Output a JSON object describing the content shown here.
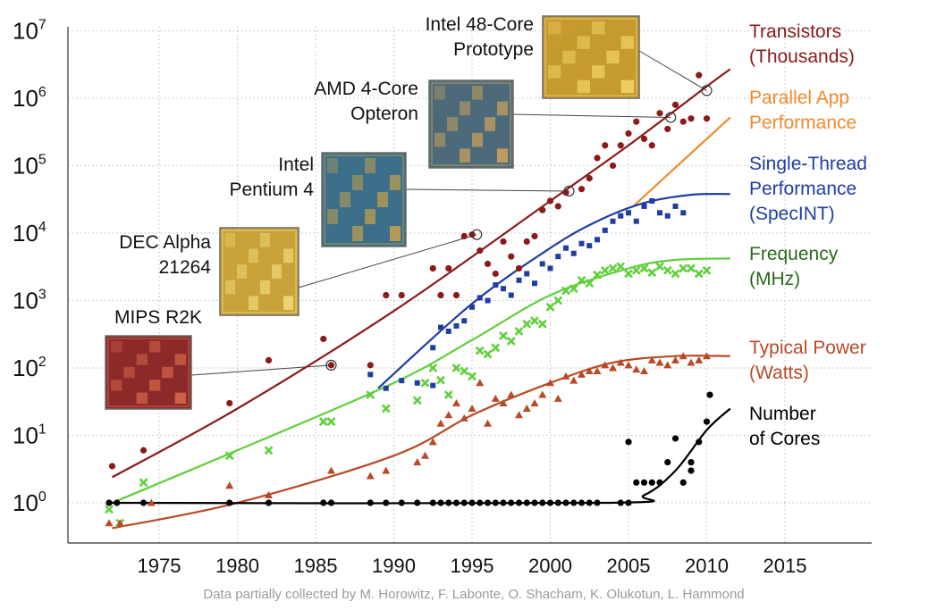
{
  "chart_data": {
    "type": "scatter",
    "title": "",
    "xlabel": "",
    "ylabel": "",
    "xlim": [
      1970,
      2020
    ],
    "ylim_log10": [
      -0.5,
      7
    ],
    "y_scale": "log",
    "grid": "dotted",
    "x_ticks": [
      "1975",
      "1980",
      "1985",
      "1990",
      "1995",
      "2000",
      "2005",
      "2010",
      "2015"
    ],
    "y_ticks": [
      {
        "base": "10",
        "exp": "0"
      },
      {
        "base": "10",
        "exp": "1"
      },
      {
        "base": "10",
        "exp": "2"
      },
      {
        "base": "10",
        "exp": "3"
      },
      {
        "base": "10",
        "exp": "4"
      },
      {
        "base": "10",
        "exp": "5"
      },
      {
        "base": "10",
        "exp": "6"
      },
      {
        "base": "10",
        "exp": "7"
      }
    ],
    "credit": "Data partially collected by M. Horowitz, F. Labonte, O. Shacham, K. Olukotun, L. Hammond",
    "series": [
      {
        "name": "Transistors (Thousands)",
        "label_lines": [
          "Transistors",
          "(Thousands)"
        ],
        "color": "#8b1a1a",
        "marker": "circle",
        "points": [
          [
            1972,
            3.5
          ],
          [
            1974,
            6
          ],
          [
            1979.5,
            30
          ],
          [
            1982,
            130
          ],
          [
            1985.5,
            270
          ],
          [
            1986,
            110
          ],
          [
            1988.5,
            110
          ],
          [
            1989.5,
            1200
          ],
          [
            1990.5,
            1200
          ],
          [
            1992.5,
            3000
          ],
          [
            1993,
            1200
          ],
          [
            1993.5,
            3000
          ],
          [
            1994,
            1200
          ],
          [
            1994.5,
            9000
          ],
          [
            1995,
            9500
          ],
          [
            1995.5,
            5500
          ],
          [
            1996,
            3500
          ],
          [
            1996.5,
            2500
          ],
          [
            1997,
            7500
          ],
          [
            1997.5,
            4500
          ],
          [
            1998,
            3000
          ],
          [
            1998.5,
            7500
          ],
          [
            1999,
            9000
          ],
          [
            1999.5,
            22000
          ],
          [
            2000,
            30000
          ],
          [
            2000.5,
            25000
          ],
          [
            2001,
            40000
          ],
          [
            2002,
            45000
          ],
          [
            2002.5,
            65000
          ],
          [
            2003,
            130000
          ],
          [
            2003.5,
            200000
          ],
          [
            2004,
            100000
          ],
          [
            2004.5,
            200000
          ],
          [
            2005,
            300000
          ],
          [
            2005.5,
            450000
          ],
          [
            2006,
            250000
          ],
          [
            2006.5,
            200000
          ],
          [
            2007,
            600000
          ],
          [
            2007.5,
            350000
          ],
          [
            2008,
            800000
          ],
          [
            2008.5,
            450000
          ],
          [
            2009,
            500000
          ],
          [
            2009.5,
            2200000
          ],
          [
            2010,
            500000
          ]
        ],
        "trend": [
          [
            1972,
            2.4
          ],
          [
            1980,
            25
          ],
          [
            1990,
            700
          ],
          [
            2000,
            30000
          ],
          [
            2005,
            200000
          ],
          [
            2010,
            1500000
          ],
          [
            2011.5,
            2700000
          ]
        ]
      },
      {
        "name": "Parallel App Performance",
        "label_lines": [
          "Parallel App",
          "Performance"
        ],
        "color": "#f08a2c",
        "marker": "none",
        "points": [],
        "trend": [
          [
            2005.3,
            25000
          ],
          [
            2011.5,
            520000
          ]
        ]
      },
      {
        "name": "Single-Thread Performance (SpecINT)",
        "label_lines": [
          "Single-Thread",
          "Performance",
          "(SpecINT)"
        ],
        "color": "#1f3ea0",
        "marker": "square",
        "points": [
          [
            1988.5,
            80
          ],
          [
            1989.5,
            50
          ],
          [
            1990.5,
            65
          ],
          [
            1991.5,
            60
          ],
          [
            1992.5,
            55
          ],
          [
            1992.5,
            200
          ],
          [
            1993,
            400
          ],
          [
            1993.5,
            350
          ],
          [
            1994,
            420
          ],
          [
            1994.5,
            500
          ],
          [
            1995,
            800
          ],
          [
            1995.5,
            1100
          ],
          [
            1996,
            1000
          ],
          [
            1996.5,
            1700
          ],
          [
            1997,
            1500
          ],
          [
            1997.5,
            1200
          ],
          [
            1998,
            2000
          ],
          [
            1998.5,
            2500
          ],
          [
            1999,
            1800
          ],
          [
            1999.5,
            3500
          ],
          [
            2000,
            3000
          ],
          [
            2000.5,
            4500
          ],
          [
            2001,
            6000
          ],
          [
            2001.5,
            5000
          ],
          [
            2002,
            7000
          ],
          [
            2002.5,
            6500
          ],
          [
            2003,
            8000
          ],
          [
            2003.5,
            11000
          ],
          [
            2004,
            15000
          ],
          [
            2004.5,
            18000
          ],
          [
            2005,
            20000
          ],
          [
            2005.5,
            15000
          ],
          [
            2006,
            25000
          ],
          [
            2006.5,
            30000
          ],
          [
            2007,
            20000
          ],
          [
            2007.5,
            18000
          ],
          [
            2008,
            25000
          ],
          [
            2008.5,
            20000
          ]
        ],
        "trend": [
          [
            1989,
            50
          ],
          [
            1995,
            900
          ],
          [
            2000,
            6000
          ],
          [
            2003,
            15000
          ],
          [
            2006,
            28000
          ],
          [
            2009,
            37000
          ],
          [
            2011.5,
            38000
          ]
        ]
      },
      {
        "name": "Frequency (MHz)",
        "label_lines": [
          "Frequency",
          "(MHz)"
        ],
        "color": "#5fd03a",
        "marker": "x",
        "points": [
          [
            1971.8,
            0.8
          ],
          [
            1972.5,
            0.5
          ],
          [
            1974,
            2
          ],
          [
            1979.5,
            5
          ],
          [
            1982,
            6
          ],
          [
            1985.5,
            16
          ],
          [
            1986,
            16
          ],
          [
            1988.5,
            40
          ],
          [
            1989.5,
            25
          ],
          [
            1991.5,
            33
          ],
          [
            1992,
            60
          ],
          [
            1992.5,
            100
          ],
          [
            1993,
            66
          ],
          [
            1993.5,
            40
          ],
          [
            1994,
            100
          ],
          [
            1994.5,
            90
          ],
          [
            1995,
            75
          ],
          [
            1995.5,
            180
          ],
          [
            1996,
            160
          ],
          [
            1996.5,
            200
          ],
          [
            1997,
            300
          ],
          [
            1997.5,
            250
          ],
          [
            1998,
            350
          ],
          [
            1998.5,
            450
          ],
          [
            1999,
            500
          ],
          [
            1999.5,
            450
          ],
          [
            2000,
            800
          ],
          [
            2000.5,
            1000
          ],
          [
            2001,
            1400
          ],
          [
            2001.5,
            1500
          ],
          [
            2002,
            2000
          ],
          [
            2002.5,
            1800
          ],
          [
            2003,
            2400
          ],
          [
            2003.5,
            2800
          ],
          [
            2004,
            3000
          ],
          [
            2004.5,
            3200
          ],
          [
            2005,
            2500
          ],
          [
            2005.5,
            2800
          ],
          [
            2006,
            3000
          ],
          [
            2006.5,
            2600
          ],
          [
            2007,
            3200
          ],
          [
            2007.5,
            2800
          ],
          [
            2008,
            2500
          ],
          [
            2008.5,
            3000
          ],
          [
            2009,
            3000
          ],
          [
            2009.5,
            2500
          ],
          [
            2010,
            2800
          ]
        ],
        "trend": [
          [
            1972,
            1
          ],
          [
            1980,
            6
          ],
          [
            1990,
            60
          ],
          [
            1995,
            260
          ],
          [
            2000,
            1200
          ],
          [
            2005,
            3000
          ],
          [
            2008,
            4000
          ],
          [
            2011.5,
            4200
          ]
        ]
      },
      {
        "name": "Typical Power (Watts)",
        "label_lines": [
          "Typical Power",
          "(Watts)"
        ],
        "color": "#b84a25",
        "marker": "triangle",
        "points": [
          [
            1971.8,
            0.5
          ],
          [
            1972.5,
            0.5
          ],
          [
            1974.5,
            1
          ],
          [
            1979.5,
            1.8
          ],
          [
            1982,
            1.3
          ],
          [
            1986,
            3
          ],
          [
            1988.5,
            2.5
          ],
          [
            1989.5,
            3
          ],
          [
            1991.5,
            4
          ],
          [
            1992,
            5
          ],
          [
            1992.5,
            8
          ],
          [
            1993,
            15
          ],
          [
            1993.5,
            20
          ],
          [
            1994,
            30
          ],
          [
            1994.5,
            18
          ],
          [
            1995,
            25
          ],
          [
            1995.5,
            60
          ],
          [
            1996,
            15
          ],
          [
            1996.5,
            35
          ],
          [
            1997,
            30
          ],
          [
            1997.5,
            40
          ],
          [
            1998,
            20
          ],
          [
            1998.5,
            25
          ],
          [
            1999,
            30
          ],
          [
            1999.5,
            40
          ],
          [
            2000,
            60
          ],
          [
            2000.5,
            35
          ],
          [
            2001,
            75
          ],
          [
            2001.5,
            65
          ],
          [
            2002,
            80
          ],
          [
            2002.5,
            90
          ],
          [
            2003,
            90
          ],
          [
            2003.5,
            110
          ],
          [
            2004,
            100
          ],
          [
            2004.5,
            120
          ],
          [
            2005,
            110
          ],
          [
            2005.5,
            95
          ],
          [
            2006,
            90
          ],
          [
            2006.5,
            130
          ],
          [
            2007,
            120
          ],
          [
            2007.5,
            110
          ],
          [
            2008,
            130
          ],
          [
            2008.5,
            150
          ],
          [
            2009,
            120
          ],
          [
            2009.5,
            130
          ],
          [
            2010,
            150
          ]
        ],
        "trend": [
          [
            1972,
            0.42
          ],
          [
            1980,
            1
          ],
          [
            1990,
            5
          ],
          [
            1995,
            20
          ],
          [
            2000,
            60
          ],
          [
            2004,
            120
          ],
          [
            2008,
            150
          ],
          [
            2011.5,
            150
          ]
        ]
      },
      {
        "name": "Number of Cores",
        "label_lines": [
          "Number",
          "of Cores"
        ],
        "color": "#000000",
        "marker": "circle",
        "points": [
          [
            1971.8,
            1
          ],
          [
            1972.3,
            1
          ],
          [
            1974,
            1
          ],
          [
            1979.5,
            1
          ],
          [
            1982,
            1
          ],
          [
            1985.5,
            1
          ],
          [
            1986,
            1
          ],
          [
            1988.5,
            1
          ],
          [
            1989.5,
            1
          ],
          [
            1990.5,
            1
          ],
          [
            1991.5,
            1
          ],
          [
            1992.5,
            1
          ],
          [
            1993,
            1
          ],
          [
            1993.5,
            1
          ],
          [
            1994,
            1
          ],
          [
            1994.5,
            1
          ],
          [
            1995,
            1
          ],
          [
            1995.5,
            1
          ],
          [
            1996,
            1
          ],
          [
            1996.5,
            1
          ],
          [
            1997,
            1
          ],
          [
            1997.5,
            1
          ],
          [
            1998,
            1
          ],
          [
            1998.5,
            1
          ],
          [
            1999,
            1
          ],
          [
            1999.5,
            1
          ],
          [
            2000,
            1
          ],
          [
            2000.5,
            1
          ],
          [
            2001,
            1
          ],
          [
            2001.5,
            1
          ],
          [
            2002,
            1
          ],
          [
            2002.5,
            1
          ],
          [
            2003,
            1
          ],
          [
            2004.5,
            1
          ],
          [
            2005,
            1
          ],
          [
            2005.5,
            2
          ],
          [
            2005,
            8
          ],
          [
            2006,
            2
          ],
          [
            2006.5,
            2
          ],
          [
            2007,
            2
          ],
          [
            2007.5,
            4
          ],
          [
            2008,
            9
          ],
          [
            2008.5,
            2
          ],
          [
            2009,
            4
          ],
          [
            2009,
            3
          ],
          [
            2009.5,
            8
          ],
          [
            2010,
            16
          ],
          [
            2010.2,
            40
          ]
        ],
        "trend": [
          [
            1972,
            1
          ],
          [
            2003.5,
            1
          ],
          [
            2006,
            1.3
          ],
          [
            2008,
            3
          ],
          [
            2010,
            12
          ],
          [
            2011.5,
            25
          ]
        ]
      }
    ],
    "callouts": [
      {
        "label_lines": [
          "MIPS R2K"
        ],
        "x": 1986,
        "y": 110
      },
      {
        "label_lines": [
          "DEC Alpha",
          "21264"
        ],
        "x": 1995.3,
        "y": 9500
      },
      {
        "label_lines": [
          "Intel",
          "Pentium 4"
        ],
        "x": 2001.2,
        "y": 42000
      },
      {
        "label_lines": [
          "AMD 4-Core",
          "Opteron"
        ],
        "x": 2007.7,
        "y": 520000
      },
      {
        "label_lines": [
          "Intel 48-Core",
          "Prototype"
        ],
        "x": 2010,
        "y": 1300000
      }
    ]
  }
}
